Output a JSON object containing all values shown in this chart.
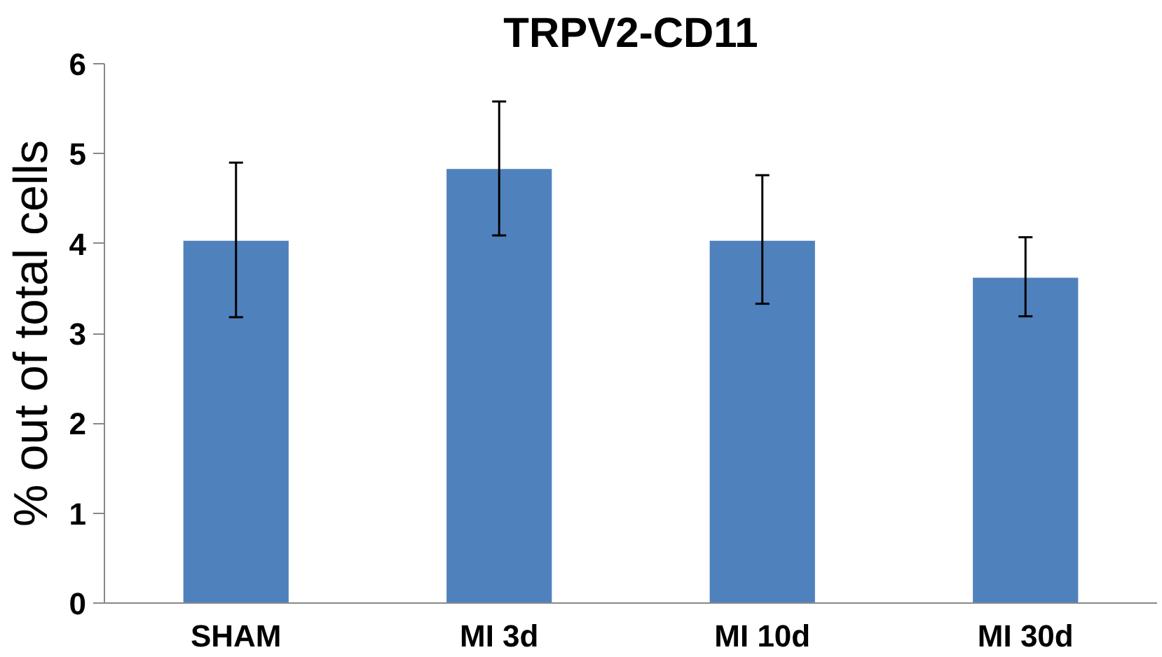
{
  "chart_data": {
    "type": "bar",
    "title": "TRPV2-CD11",
    "ylabel": "% out of total cells",
    "categories": [
      "SHAM",
      "MI 3d",
      "MI 10d",
      "MI 30d"
    ],
    "values": [
      4.03,
      4.83,
      4.03,
      3.62
    ],
    "errors": [
      [
        3.18,
        4.9
      ],
      [
        4.09,
        5.58
      ],
      [
        3.33,
        4.76
      ],
      [
        3.19,
        4.07
      ]
    ],
    "color": "#4f81bd",
    "ylim": [
      0,
      6
    ],
    "yticks": [
      0,
      1,
      2,
      3,
      4,
      5,
      6
    ],
    "grid": false
  }
}
